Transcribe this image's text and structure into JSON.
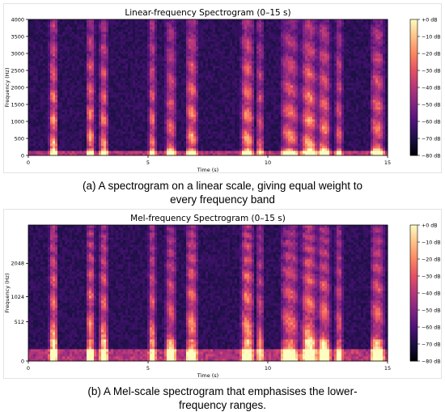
{
  "chart_data": [
    {
      "type": "heatmap",
      "title": "Linear-frequency Spectrogram (0–15 s)",
      "xlabel": "Time (s)",
      "ylabel": "Frequency (Hz)",
      "xlim": [
        0,
        15
      ],
      "ylim": [
        0,
        4000
      ],
      "y_scale": "linear",
      "x_ticks": [
        "0",
        "5",
        "10",
        "15"
      ],
      "x_tick_values": [
        0,
        5,
        10,
        15
      ],
      "y_ticks": [
        "0",
        "500",
        "1000",
        "1500",
        "2000",
        "2500",
        "3000",
        "3500",
        "4000"
      ],
      "y_tick_values": [
        0,
        500,
        1000,
        1500,
        2000,
        2500,
        3000,
        3500,
        4000
      ],
      "colorbar": {
        "ticks": [
          "+0 dB",
          "−10 dB",
          "−20 dB",
          "−30 dB",
          "−40 dB",
          "−50 dB",
          "−60 dB",
          "−70 dB",
          "−80 dB"
        ],
        "range_db": [
          -80,
          0
        ],
        "colormap": "magma"
      },
      "grid": false
    },
    {
      "type": "heatmap",
      "title": "Mel-frequency Spectrogram (0–15 s)",
      "xlabel": "Time (s)",
      "ylabel": "Frequency (Hz)",
      "xlim": [
        0,
        15
      ],
      "y_scale": "mel",
      "ylim": [
        0,
        4000
      ],
      "x_ticks": [
        "0",
        "5",
        "10",
        "15"
      ],
      "x_tick_values": [
        0,
        5,
        10,
        15
      ],
      "y_ticks": [
        "0",
        "512",
        "1024",
        "2048"
      ],
      "y_tick_values": [
        0,
        512,
        1024,
        2048
      ],
      "colorbar": {
        "ticks": [
          "+0 dB",
          "−10 dB",
          "−20 dB",
          "−30 dB",
          "−40 dB",
          "−50 dB",
          "−60 dB",
          "−70 dB",
          "−80 dB"
        ],
        "range_db": [
          -80,
          0
        ],
        "colormap": "magma"
      },
      "grid": false
    }
  ],
  "captions": {
    "a": "(a) A spectrogram on a linear scale, giving equal weight to every frequency band",
    "b": "(b) A Mel-scale spectrogram that emphasises the lower-frequency ranges."
  }
}
